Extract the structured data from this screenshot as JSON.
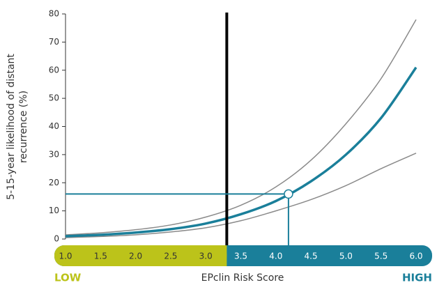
{
  "chart_data": {
    "type": "line",
    "ylabel": [
      "5-15-year likelihood of distant",
      "recurrence (%)"
    ],
    "xlabel": "EPclin Risk Score",
    "low_label": "LOW",
    "high_label": "HIGH",
    "low_color": "#bcc31a",
    "high_color": "#1a7f9a",
    "x": [
      1.0,
      1.5,
      2.0,
      2.5,
      3.0,
      3.5,
      4.0,
      4.5,
      5.0,
      5.5,
      6.0
    ],
    "series": [
      {
        "color": "#8a8a8a",
        "width": 1.5,
        "values": [
          1.5,
          2.2,
          3.3,
          5,
          7.8,
          12,
          18.5,
          28,
          41,
          57,
          78
        ]
      },
      {
        "color": "#8a8a8a",
        "width": 1.5,
        "values": [
          0.5,
          0.9,
          1.5,
          2.5,
          4,
          6.5,
          10,
          14,
          19,
          25,
          30.5
        ]
      },
      {
        "color": "#1a7f9a",
        "width": 3.5,
        "values": [
          1,
          1.5,
          2.3,
          3.5,
          5.5,
          8.8,
          13.5,
          20.5,
          30,
          43,
          61
        ]
      }
    ],
    "cutoff": 3.3,
    "marker": {
      "x": 4.18,
      "y": 16
    },
    "xlim": [
      1.0,
      6.0
    ],
    "ylim": [
      0,
      80
    ],
    "xticks": [
      {
        "value": 1,
        "label": "1.0"
      },
      1.5,
      {
        "value": 2,
        "label": "2.0"
      },
      2.5,
      {
        "value": 3,
        "label": "3.0"
      },
      3.5,
      {
        "value": 4,
        "label": "4.0"
      },
      4.5,
      {
        "value": 5,
        "label": "5.0"
      },
      5.5,
      {
        "value": 6,
        "label": "6.0"
      }
    ],
    "yticks": [
      0,
      10,
      20,
      30,
      40,
      50,
      60,
      70,
      80
    ]
  }
}
